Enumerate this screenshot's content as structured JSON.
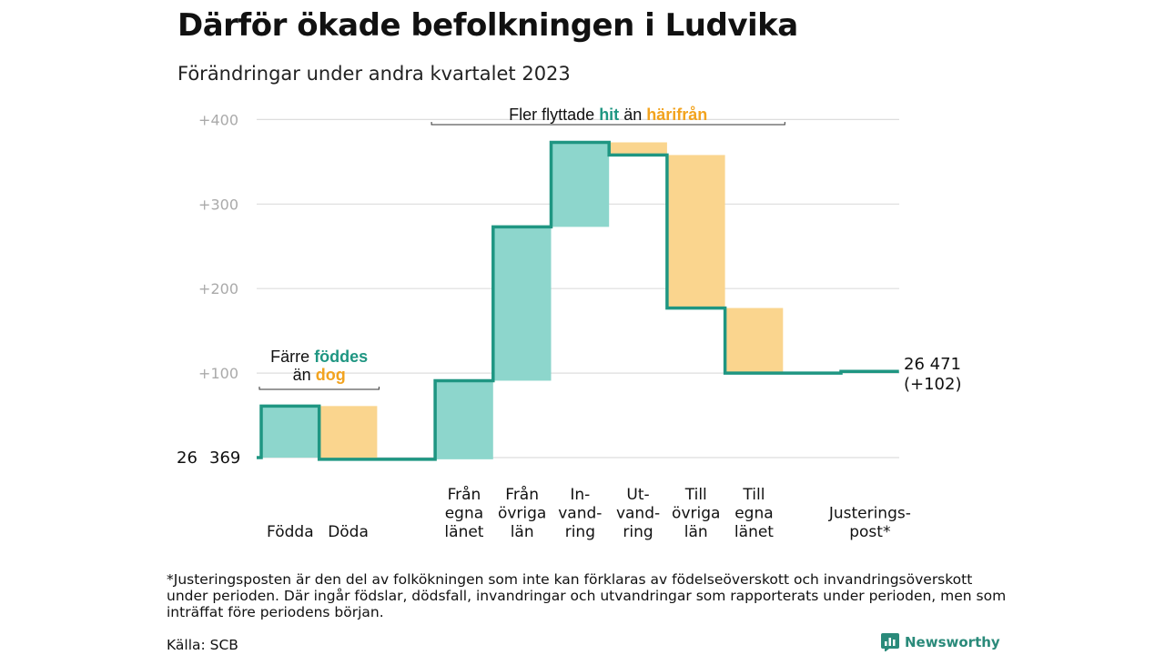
{
  "title": "Därför ökade befolkningen i Ludvika",
  "subtitle": "Förändringar under andra kvartalet 2023",
  "footnote": "*Justeringsposten är den del av folkökningen som inte kan förklaras av födelseöverskott och invandringsöverskott under perioden. Där ingår födslar, dödsfall, invandringar och utvandringar som rapporterats under perioden, men som inträffat före periodens början.",
  "source": "Källa: SCB",
  "brand": "Newsworthy",
  "colors": {
    "line": "#1f9682",
    "increase": "#8dd6cc",
    "decrease": "#fad58e",
    "grid": "#dddddd",
    "tick": "#aaaaaa",
    "teal_text": "#1f9682",
    "orange_text": "#f2a31f"
  },
  "chart_data": {
    "type": "waterfall",
    "start_label_parts": [
      "26",
      "369"
    ],
    "end_label": [
      "26 471",
      "(+102)"
    ],
    "y_ticks": [
      {
        "value": 100,
        "label": "+100"
      },
      {
        "value": 200,
        "label": "+200"
      },
      {
        "value": 300,
        "label": "+300"
      },
      {
        "value": 400,
        "label": "+400"
      }
    ],
    "ylim": [
      -40,
      430
    ],
    "steps": [
      {
        "label": [
          "Födda"
        ],
        "from": 0,
        "to": 61
      },
      {
        "label": [
          "Döda"
        ],
        "from": 61,
        "to": -2
      },
      {
        "label": [],
        "from": -2,
        "to": -2
      },
      {
        "label": [
          "Från",
          "egna",
          "länet"
        ],
        "from": -2,
        "to": 91
      },
      {
        "label": [
          "Från",
          "övriga",
          "län"
        ],
        "from": 91,
        "to": 273
      },
      {
        "label": [
          "In-",
          "vand-",
          "ring"
        ],
        "from": 273,
        "to": 373
      },
      {
        "label": [
          "Ut-",
          "vand-",
          "ring"
        ],
        "from": 373,
        "to": 358
      },
      {
        "label": [
          "Till",
          "övriga",
          "län"
        ],
        "from": 358,
        "to": 177
      },
      {
        "label": [
          "Till",
          "egna",
          "länet"
        ],
        "from": 177,
        "to": 100
      },
      {
        "label": [],
        "from": 100,
        "to": 100
      },
      {
        "label": [
          "Justerings-",
          "post*"
        ],
        "from": 100,
        "to": 102
      }
    ],
    "annotations": [
      {
        "parts": [
          {
            "text": "Färre "
          },
          {
            "text": "föddes",
            "color": "teal"
          }
        ],
        "parts2": [
          {
            "text": "än "
          },
          {
            "text": "dog",
            "color": "orange"
          }
        ],
        "bracket_from": 0,
        "bracket_to": 1
      },
      {
        "parts": [
          {
            "text": "Fler flyttade "
          },
          {
            "text": "hit",
            "color": "teal"
          },
          {
            "text": " än "
          },
          {
            "text": "härifrån",
            "color": "orange"
          }
        ],
        "bracket_from": 3,
        "bracket_to": 8
      }
    ]
  }
}
